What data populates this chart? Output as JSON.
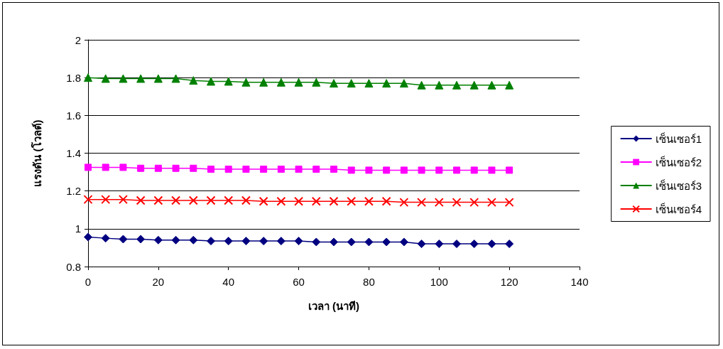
{
  "chart_data": {
    "type": "line",
    "xlabel": "เวลา (นาที)",
    "ylabel": "แรงดัน (โวลต์)",
    "x": [
      0,
      5,
      10,
      15,
      20,
      25,
      30,
      35,
      40,
      45,
      50,
      55,
      60,
      65,
      70,
      75,
      80,
      85,
      90,
      95,
      100,
      105,
      110,
      115,
      120
    ],
    "series": [
      {
        "name": "เซ็นเซอร์1",
        "color": "#000080",
        "marker": "diamond",
        "values": [
          0.956,
          0.95,
          0.945,
          0.945,
          0.94,
          0.94,
          0.94,
          0.935,
          0.935,
          0.935,
          0.935,
          0.935,
          0.935,
          0.93,
          0.93,
          0.93,
          0.93,
          0.93,
          0.93,
          0.92,
          0.92,
          0.92,
          0.92,
          0.92,
          0.92
        ]
      },
      {
        "name": "เซ็นเซอร์2",
        "color": "#ff00ff",
        "marker": "square",
        "values": [
          1.325,
          1.325,
          1.325,
          1.32,
          1.32,
          1.32,
          1.32,
          1.315,
          1.315,
          1.315,
          1.315,
          1.315,
          1.315,
          1.315,
          1.315,
          1.31,
          1.31,
          1.31,
          1.31,
          1.31,
          1.31,
          1.31,
          1.31,
          1.31,
          1.31
        ]
      },
      {
        "name": "เซ็นเซอร์3",
        "color": "#008000",
        "marker": "triangle",
        "values": [
          1.8,
          1.795,
          1.795,
          1.795,
          1.795,
          1.795,
          1.785,
          1.78,
          1.78,
          1.775,
          1.775,
          1.775,
          1.775,
          1.775,
          1.77,
          1.77,
          1.77,
          1.77,
          1.77,
          1.76,
          1.76,
          1.76,
          1.76,
          1.76,
          1.76
        ]
      },
      {
        "name": "เซ็นเซอร์4",
        "color": "#ff0000",
        "marker": "cross",
        "values": [
          1.155,
          1.155,
          1.155,
          1.15,
          1.15,
          1.15,
          1.15,
          1.15,
          1.15,
          1.15,
          1.145,
          1.145,
          1.145,
          1.145,
          1.145,
          1.145,
          1.145,
          1.145,
          1.14,
          1.14,
          1.14,
          1.14,
          1.14,
          1.14,
          1.14
        ]
      }
    ],
    "xlim": [
      0,
      140
    ],
    "xticks": [
      0,
      20,
      40,
      60,
      80,
      100,
      120,
      140
    ],
    "ylim": [
      0.8,
      2
    ],
    "yticks": [
      0.8,
      1,
      1.2,
      1.4,
      1.6,
      1.8,
      2
    ],
    "grid": "y",
    "legend": "right"
  }
}
